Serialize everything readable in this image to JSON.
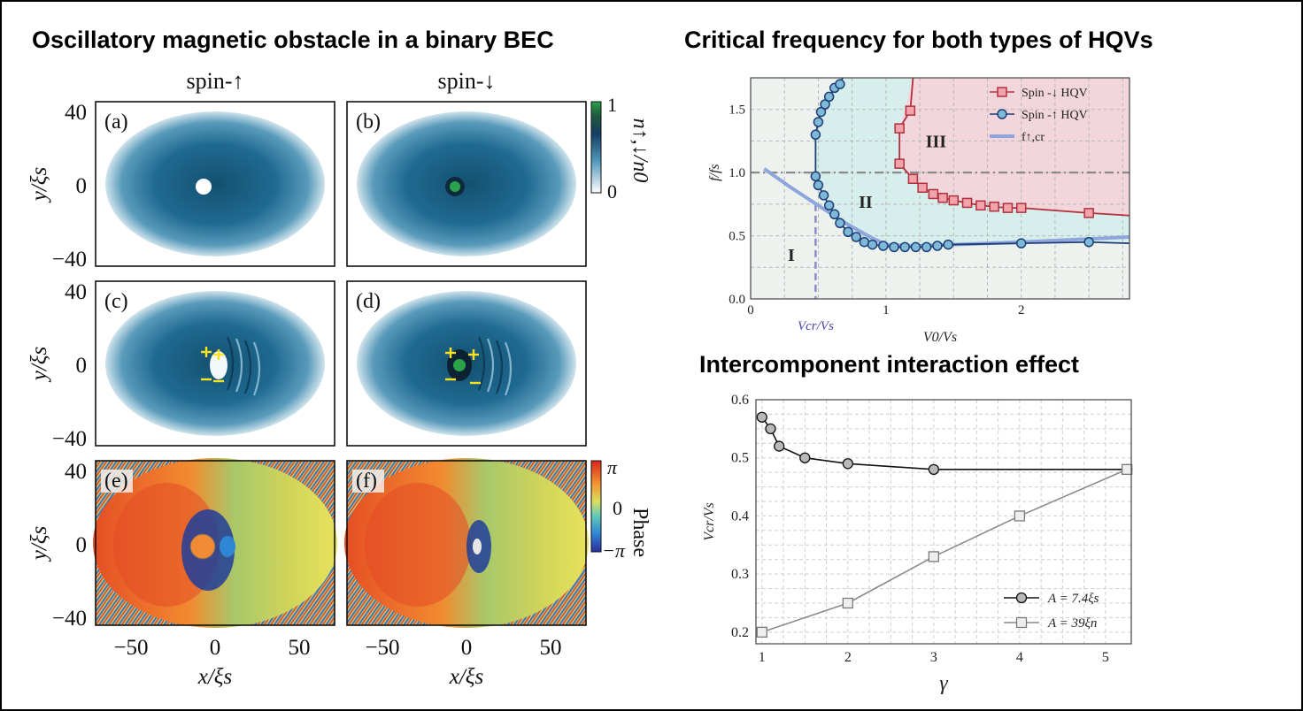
{
  "headings": {
    "left": "Oscillatory magnetic obstacle in a binary BEC",
    "top_right": "Critical frequency for both types of HQVs",
    "bottom_right": "Intercomponent interaction effect"
  },
  "colors": {
    "density": "#1f6a92",
    "down_series": "#b0303c",
    "up_series": "#1e3e78",
    "fcr_line": "#8fa6dc",
    "gamma_grey": "#8a8a8a",
    "region_I": "#eef2ef",
    "region_II": "#d7efec",
    "region_III": "#f2d6db"
  },
  "panels": {
    "col_titles": [
      "spin-↑",
      "spin-↓"
    ],
    "labels": [
      "(a)",
      "(b)",
      "(c)",
      "(d)",
      "(e)",
      "(f)"
    ],
    "y_ticks": [
      "40",
      "0",
      "−40"
    ],
    "x_ticks": [
      "−50",
      "0",
      "50"
    ],
    "ylabel": "y/ξs",
    "xlabel": "x/ξs",
    "density_cbar": {
      "label": "n↑,↓/n0",
      "max": "1",
      "min": "0"
    },
    "phase_cbar": {
      "label": "Phase",
      "max": "π",
      "mid": "0",
      "min": "−π"
    }
  },
  "chart_data": [
    {
      "type": "line",
      "title": "Critical frequency for both types of HQVs",
      "xlabel": "V0/Vs",
      "ylabel": "f/fs",
      "xlim": [
        0,
        2.8
      ],
      "ylim": [
        0,
        1.75
      ],
      "x_ticks": [
        "0",
        "1",
        "2"
      ],
      "y_ticks": [
        "0.0",
        "0.5",
        "1.0",
        "1.5"
      ],
      "extra_x_label": "Vcr/Vs",
      "vcr_x": 0.48,
      "hline_y": 1.0,
      "regions": [
        "I",
        "II",
        "III"
      ],
      "legend_position": "top-right",
      "grid": true,
      "series": [
        {
          "name": "Spin -↓ HQV",
          "marker": "square",
          "x": [
            1.1,
            1.1,
            1.18,
            1.2,
            1.27,
            1.35,
            1.42,
            1.5,
            1.6,
            1.7,
            1.8,
            1.9,
            2.0,
            2.5
          ],
          "y": [
            1.35,
            1.07,
            1.49,
            0.95,
            0.88,
            0.83,
            0.8,
            0.78,
            0.76,
            0.74,
            0.73,
            0.72,
            0.72,
            0.68
          ]
        },
        {
          "name": "Spin -↑ HQV",
          "marker": "circle",
          "x": [
            0.48,
            0.5,
            0.52,
            0.55,
            0.58,
            0.62,
            0.66,
            0.48,
            0.5,
            0.54,
            0.58,
            0.62,
            0.66,
            0.72,
            0.78,
            0.84,
            0.9,
            0.98,
            1.06,
            1.14,
            1.22,
            1.3,
            1.38,
            1.46,
            2.0,
            2.5
          ],
          "y": [
            1.3,
            1.4,
            1.48,
            1.54,
            1.6,
            1.67,
            1.7,
            0.97,
            0.9,
            0.82,
            0.74,
            0.67,
            0.6,
            0.53,
            0.49,
            0.45,
            0.43,
            0.42,
            0.41,
            0.41,
            0.41,
            0.41,
            0.42,
            0.43,
            0.44,
            0.45
          ]
        },
        {
          "name": "f↑,cr",
          "marker": "none",
          "x": [
            0.1,
            0.3,
            0.5,
            0.7,
            0.9,
            1.0,
            1.2,
            1.5,
            2.0,
            2.8
          ],
          "y": [
            1.03,
            0.88,
            0.74,
            0.6,
            0.48,
            0.43,
            0.42,
            0.43,
            0.45,
            0.49
          ]
        }
      ]
    },
    {
      "type": "line",
      "title": "Intercomponent interaction effect",
      "xlabel": "γ",
      "ylabel": "Vcr/Vs",
      "xlim": [
        0.93,
        5.3
      ],
      "ylim": [
        0.18,
        0.6
      ],
      "x_ticks": [
        "1",
        "2",
        "3",
        "4",
        "5"
      ],
      "y_ticks": [
        "0.2",
        "0.3",
        "0.4",
        "0.5",
        "0.6"
      ],
      "legend_position": "bottom-right",
      "grid": true,
      "series": [
        {
          "name": "A = 7.4ξs",
          "marker": "circle",
          "x": [
            1.0,
            1.1,
            1.2,
            1.5,
            2.0,
            3.0,
            5.25
          ],
          "y": [
            0.57,
            0.55,
            0.52,
            0.5,
            0.49,
            0.48,
            0.48
          ]
        },
        {
          "name": "A = 39ξn",
          "marker": "square",
          "x": [
            1.0,
            2.0,
            3.0,
            4.0,
            5.25
          ],
          "y": [
            0.2,
            0.25,
            0.33,
            0.4,
            0.48
          ]
        }
      ]
    }
  ]
}
